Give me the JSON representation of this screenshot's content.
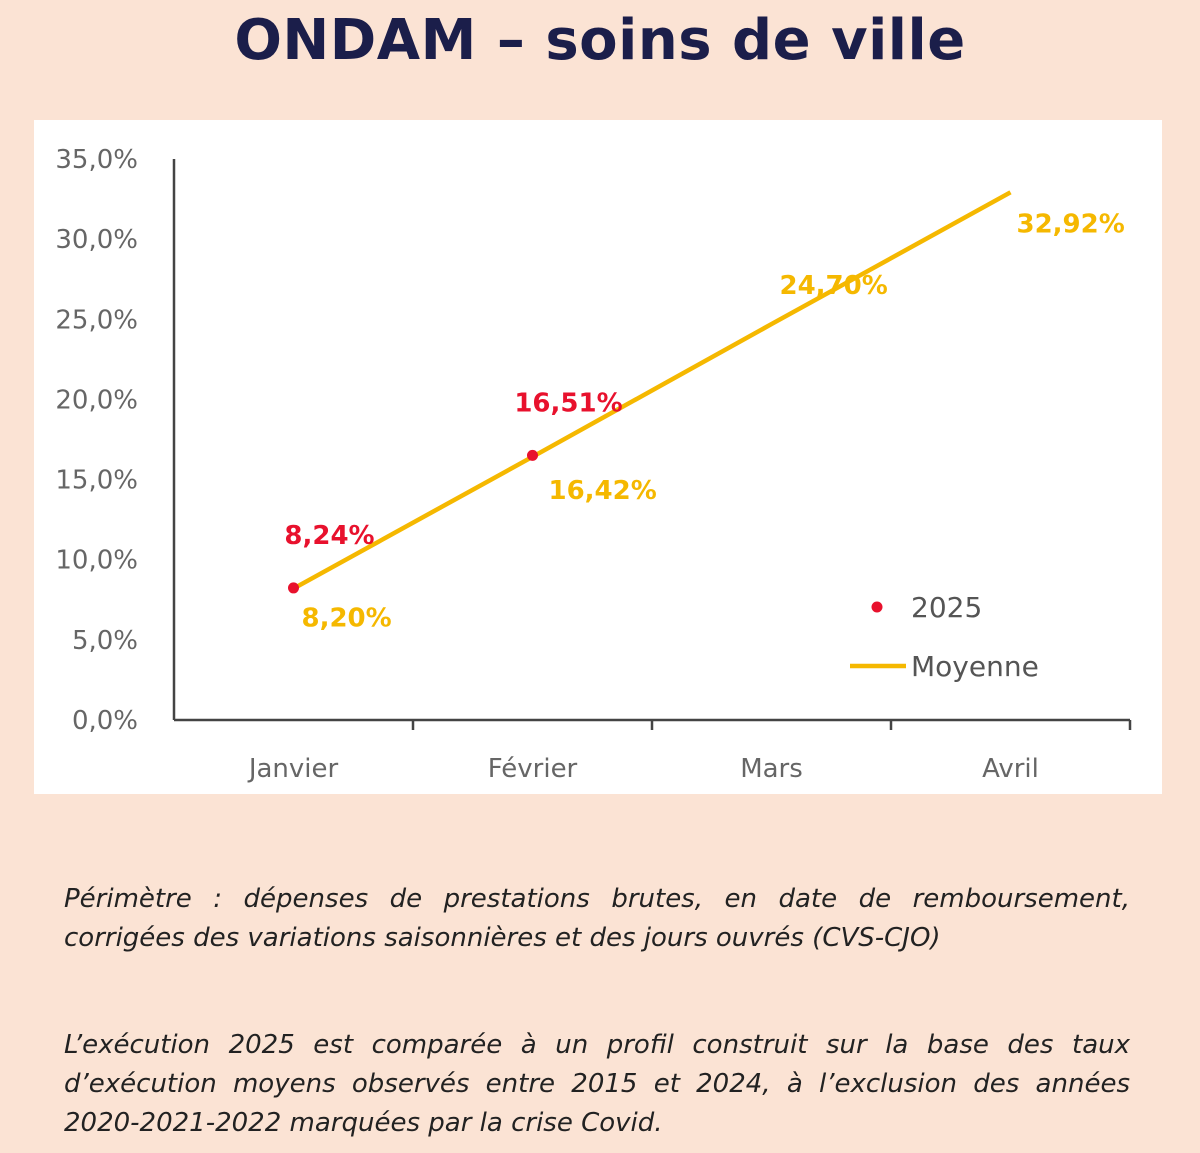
{
  "title": "ONDAM – soins de ville",
  "chart_data": {
    "type": "line",
    "categories": [
      "Janvier",
      "Février",
      "Mars",
      "Avril"
    ],
    "y_ticks": [
      "0,0%",
      "5,0%",
      "10,0%",
      "15,0%",
      "20,0%",
      "25,0%",
      "30,0%",
      "35,0%"
    ],
    "ylim": [
      0,
      35
    ],
    "grid": false,
    "legend_position": "bottom-right",
    "series": [
      {
        "name": "2025",
        "kind": "points",
        "color": "#e8112d",
        "values": [
          8.24,
          16.51,
          null,
          null
        ],
        "labels": [
          "8,24%",
          "16,51%",
          "",
          ""
        ]
      },
      {
        "name": "Moyenne",
        "kind": "line",
        "color": "#f5b800",
        "values": [
          8.2,
          16.42,
          24.7,
          32.92
        ],
        "labels": [
          "8,20%",
          "16,42%",
          "24,70%",
          "32,92%"
        ]
      }
    ]
  },
  "notes": [
    "Périmètre : dépenses de prestations brutes, en date de remboursement, corrigées des variations saisonnières et des jours ouvrés (CVS-CJO)",
    "L’exécution 2025 est comparée à un profil construit sur la base des taux d’exécution moyens observés entre 2015 et 2024, à l’exclusion des années 2020-2021-2022 marquées par la crise Covid."
  ]
}
